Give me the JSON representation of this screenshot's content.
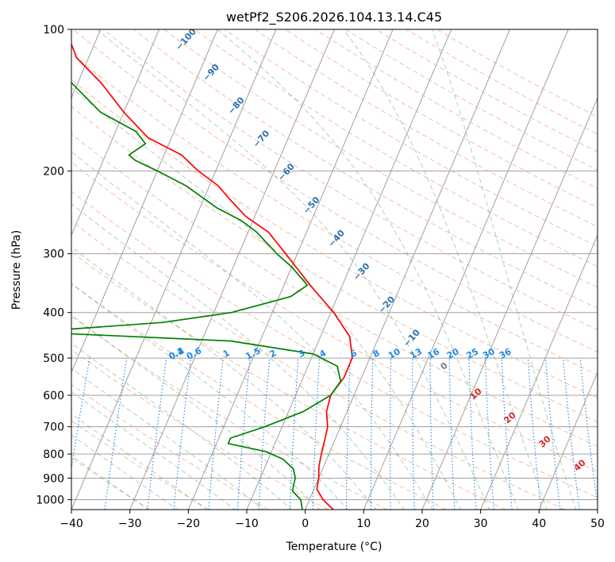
{
  "chart_data": {
    "type": "line",
    "subtype": "skew-t log-p",
    "title": "wetPf2_S206.2026.104.13.14.C45",
    "xlabel": "Temperature (°C)",
    "ylabel": "Pressure (hPa)",
    "xlim": [
      -40,
      50
    ],
    "ylim_hpa": [
      1050,
      100
    ],
    "x_ticks": [
      "−40",
      "−30",
      "−20",
      "−10",
      "0",
      "10",
      "20",
      "30",
      "40",
      "50"
    ],
    "x_tick_values": [
      -40,
      -30,
      -20,
      -10,
      0,
      10,
      20,
      30,
      40,
      50
    ],
    "y_ticks": [
      "100",
      "200",
      "300",
      "400",
      "500",
      "600",
      "700",
      "800",
      "900",
      "1000"
    ],
    "y_tick_values": [
      100,
      200,
      300,
      400,
      500,
      600,
      700,
      800,
      900,
      1000
    ],
    "series": [
      {
        "name": "Temperature",
        "color": "#ff0000",
        "points": [
          [
            1050,
            4.8
          ],
          [
            1000,
            2.3
          ],
          [
            950,
            0.5
          ],
          [
            900,
            0.0
          ],
          [
            850,
            -0.8
          ],
          [
            800,
            -1.3
          ],
          [
            750,
            -1.7
          ],
          [
            700,
            -2.2
          ],
          [
            650,
            -3.5
          ],
          [
            600,
            -4.0
          ],
          [
            550,
            -3.0
          ],
          [
            500,
            -3.0
          ],
          [
            450,
            -5.0
          ],
          [
            400,
            -9.5
          ],
          [
            350,
            -15.5
          ],
          [
            300,
            -22.0
          ],
          [
            270,
            -26.5
          ],
          [
            250,
            -31.5
          ],
          [
            230,
            -35.5
          ],
          [
            215,
            -38.5
          ],
          [
            200,
            -43.0
          ],
          [
            185,
            -47.0
          ],
          [
            170,
            -54.0
          ],
          [
            150,
            -60.0
          ],
          [
            130,
            -66.0
          ],
          [
            115,
            -72.0
          ],
          [
            100,
            -76.0
          ]
        ]
      },
      {
        "name": "Dewpoint",
        "color": "#008000",
        "points": [
          [
            1050,
            -0.5
          ],
          [
            1000,
            -1.5
          ],
          [
            960,
            -3.5
          ],
          [
            930,
            -3.8
          ],
          [
            900,
            -4.0
          ],
          [
            860,
            -5.0
          ],
          [
            820,
            -7.5
          ],
          [
            790,
            -11.0
          ],
          [
            760,
            -18.0
          ],
          [
            740,
            -18.0
          ],
          [
            700,
            -13.0
          ],
          [
            650,
            -7.5
          ],
          [
            600,
            -4.0
          ],
          [
            560,
            -3.3
          ],
          [
            520,
            -5.0
          ],
          [
            490,
            -10.0
          ],
          [
            460,
            -25.0
          ],
          [
            440,
            -60.0
          ],
          [
            420,
            -38.0
          ],
          [
            400,
            -27.0
          ],
          [
            370,
            -18.0
          ],
          [
            350,
            -16.0
          ],
          [
            320,
            -20.0
          ],
          [
            300,
            -23.5
          ],
          [
            270,
            -28.5
          ],
          [
            255,
            -32.0
          ],
          [
            240,
            -37.0
          ],
          [
            215,
            -44.0
          ],
          [
            200,
            -50.0
          ],
          [
            190,
            -54.5
          ],
          [
            185,
            -56.0
          ],
          [
            175,
            -54.0
          ],
          [
            165,
            -56.5
          ],
          [
            150,
            -64.0
          ],
          [
            120,
            -75.0
          ],
          [
            100,
            -84.0
          ]
        ]
      }
    ],
    "dry_adiabat_labels": [
      "−100",
      "−90",
      "−80",
      "−70",
      "−60",
      "−50",
      "−40",
      "−30",
      "−20",
      "−10"
    ],
    "moist_adiabat_labels": [
      "0",
      "10",
      "20",
      "30",
      "40"
    ],
    "mixing_ratio_labels": [
      "0.1",
      "0.2",
      "0.4",
      "0.6",
      "1",
      "1.5",
      "2",
      "3",
      "4",
      "6",
      "8",
      "10",
      "13",
      "16",
      "20",
      "25",
      "30",
      "36"
    ],
    "colors": {
      "temperature": "#ff0000",
      "dewpoint": "#008000",
      "dry_adiabat": "#f4a582",
      "moist_adiabat": "#2e8b57",
      "mixing_ratio": "#1e88e5",
      "isotherm_grid": "#a0a0a0",
      "dry_label": "#2a6fb0",
      "moist_label": "#d62728",
      "zero_label": "#808080",
      "mixing_label": "#1e88e5"
    }
  }
}
